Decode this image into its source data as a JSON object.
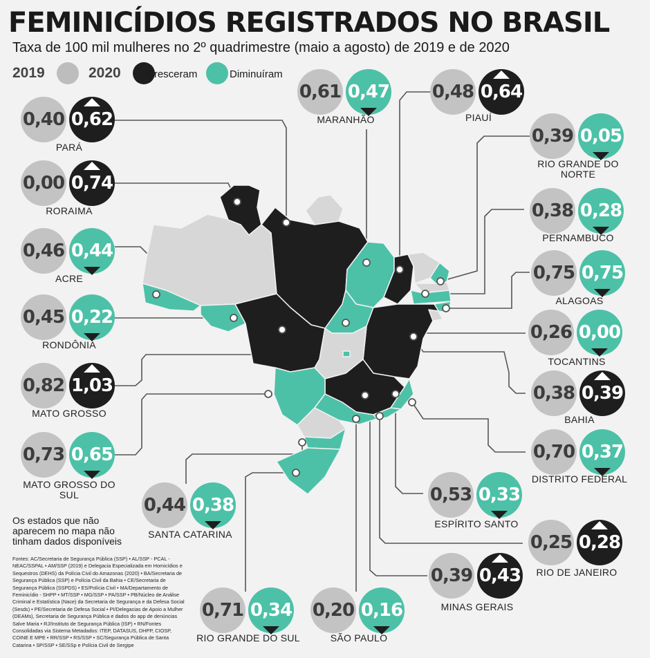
{
  "title": "FEMINICÍDIOS REGISTRADOS NO BRASIL",
  "subtitle": "Taxa de 100 mil mulheres no 2º quadrimestre (maio a agosto) de 2019 e de 2020",
  "legend": {
    "label_2019": "2019",
    "label_2020": "2020",
    "increased": "Cresceram",
    "decreased": "Diminuíram"
  },
  "colors": {
    "increased": "#1e1e1e",
    "decreased": "#4cc1a7",
    "y2019": "#c3c3c3",
    "no_data": "#d7d7d7"
  },
  "states": [
    {
      "name": "PARÁ",
      "v2019": "0,40",
      "v2020": "0,62",
      "trend": "up"
    },
    {
      "name": "RORAIMA",
      "v2019": "0,00",
      "v2020": "0,74",
      "trend": "up"
    },
    {
      "name": "ACRE",
      "v2019": "0,46",
      "v2020": "0,44",
      "trend": "down"
    },
    {
      "name": "RONDÔNIA",
      "v2019": "0,45",
      "v2020": "0,22",
      "trend": "down"
    },
    {
      "name": "MATO GROSSO",
      "v2019": "0,82",
      "v2020": "1,03",
      "trend": "up"
    },
    {
      "name": "MATO GROSSO DO SUL",
      "v2019": "0,73",
      "v2020": "0,65",
      "trend": "down"
    },
    {
      "name": "SANTA CATARINA",
      "v2019": "0,44",
      "v2020": "0,38",
      "trend": "down"
    },
    {
      "name": "RIO GRANDE DO SUL",
      "v2019": "0,71",
      "v2020": "0,34",
      "trend": "down"
    },
    {
      "name": "SÃO PAULO",
      "v2019": "0,20",
      "v2020": "0,16",
      "trend": "down"
    },
    {
      "name": "MINAS GERAIS",
      "v2019": "0,39",
      "v2020": "0,43",
      "trend": "up"
    },
    {
      "name": "RIO DE JANEIRO",
      "v2019": "0,25",
      "v2020": "0,28",
      "trend": "up"
    },
    {
      "name": "ESPÍRITO SANTO",
      "v2019": "0,53",
      "v2020": "0,33",
      "trend": "down"
    },
    {
      "name": "DISTRITO FEDERAL",
      "v2019": "0,70",
      "v2020": "0,37",
      "trend": "down"
    },
    {
      "name": "BAHIA",
      "v2019": "0,38",
      "v2020": "0,39",
      "trend": "up"
    },
    {
      "name": "TOCANTINS",
      "v2019": "0,26",
      "v2020": "0,00",
      "trend": "down"
    },
    {
      "name": "ALAGOAS",
      "v2019": "0,75",
      "v2020": "0,75",
      "trend": "down"
    },
    {
      "name": "PERNAMBUCO",
      "v2019": "0,38",
      "v2020": "0,28",
      "trend": "down"
    },
    {
      "name": "RIO GRANDE DO NORTE",
      "v2019": "0,39",
      "v2020": "0,05",
      "trend": "down"
    },
    {
      "name": "PIAUÍ",
      "v2019": "0,48",
      "v2020": "0,64",
      "trend": "up"
    },
    {
      "name": "MARANHÃO",
      "v2019": "0,61",
      "v2020": "0,47",
      "trend": "down"
    }
  ],
  "note": "Os estados que não aparecem no mapa não tinham dados disponíveis",
  "sources": "Fontes: AC/Secretaria de Segurança Pública (SSP) • AL/SSP - PCAL - NEAC/SSPAL • AM/SSP (2019) e Delegacia Especializada em Homicídios e Sequestros (DEHS) da Polícia Civil do Amazonas (2020) • BA/Secretaria de Segurança Pública (SSP) e Polícia Civil da Bahia • CE/Secretaria de Segurança Pública (SSPDS) • ES/Polícia Civil • MA/Departamento de Feminicídio - SHPP • MT/SSP • MG/SSP • PA/SSP • PB/Núcleo de Análise Criminal e Estatística (Nace) da Secretaria de Segurança e da Defesa Social (Sesds) • PE/Secretaria de Defesa Social • PI/Delegacias de Apoio a Mulher (DEAMs), Secretaria de Segurança Pública e dados do app de denúncias Salve Maria • RJ/Instituto de Segurança Pública (ISP) • RN/Fontes Consolidadas via Sistema Metadados: ITEP, DATASUS, DHPP, CIOSP, COINE E MPE • RR/SSP • RS/SSP • SC/Segurança Pública de Santa Catarina • SP/SSP • SE/SSp e Polícia Civil de Sergipe"
}
